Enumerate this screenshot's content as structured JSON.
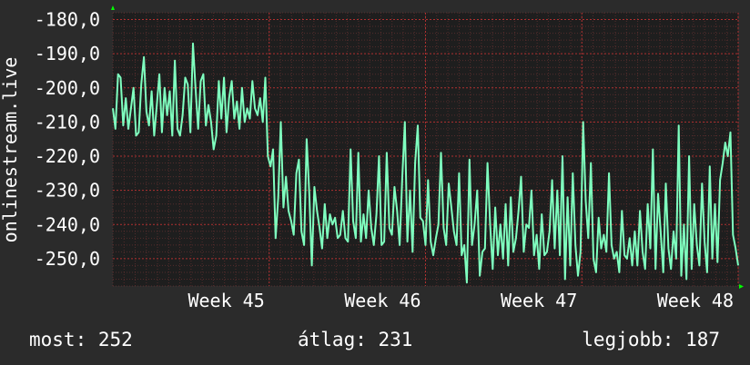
{
  "chart_data": {
    "type": "line",
    "ylabel": "onlinestream.live",
    "ylim": [
      -258,
      -178
    ],
    "yticks": [
      -180,
      -190,
      -200,
      -210,
      -220,
      -230,
      -240,
      -250
    ],
    "ytick_labels": [
      "-180,0",
      "-190,0",
      "-200,0",
      "-210,0",
      "-220,0",
      "-230,0",
      "-240,0",
      "-250,0"
    ],
    "xlim": [
      0,
      28
    ],
    "xticks": [
      7,
      14,
      21,
      28
    ],
    "xtick_labels": [
      "Week 45",
      "Week 46",
      "Week 47",
      "Week 48"
    ],
    "grid": true,
    "colors": {
      "line": "#7fffbf",
      "background": "#2b2b2b",
      "plot": "#1e1e1e",
      "grid": "#6b3333",
      "axis_arrow": "#00ff00"
    },
    "series": [
      {
        "values": [
          -206,
          -212,
          -196,
          -197,
          -211,
          -203,
          -212,
          -206,
          -200,
          -214,
          -213,
          -199,
          -191,
          -207,
          -211,
          -201,
          -214,
          -205,
          -196,
          -213,
          -200,
          -208,
          -201,
          -214,
          -192,
          -212,
          -214,
          -208,
          -197,
          -199,
          -213,
          -187,
          -200,
          -212,
          -198,
          -196,
          -211,
          -205,
          -210,
          -218,
          -214,
          -198,
          -209,
          -197,
          -213,
          -203,
          -198,
          -209,
          -204,
          -212,
          -200,
          -210,
          -206,
          -209,
          -198,
          -206,
          -208,
          -203,
          -210,
          -197,
          -220,
          -223,
          -218,
          -244,
          -232,
          -210,
          -235,
          -226,
          -236,
          -239,
          -243,
          -225,
          -221,
          -242,
          -246,
          -215,
          -231,
          -252,
          -229,
          -236,
          -241,
          -247,
          -234,
          -244,
          -237,
          -240,
          -238,
          -244,
          -243,
          -236,
          -244,
          -245,
          -218,
          -239,
          -244,
          -219,
          -245,
          -237,
          -244,
          -230,
          -241,
          -246,
          -237,
          -220,
          -246,
          -245,
          -219,
          -241,
          -243,
          -229,
          -236,
          -246,
          -226,
          -210,
          -245,
          -230,
          -248,
          -222,
          -211,
          -238,
          -239,
          -246,
          -227,
          -245,
          -249,
          -244,
          -240,
          -219,
          -241,
          -246,
          -228,
          -235,
          -242,
          -246,
          -225,
          -249,
          -246,
          -257,
          -221,
          -246,
          -240,
          -230,
          -255,
          -248,
          -247,
          -222,
          -240,
          -253,
          -235,
          -249,
          -240,
          -250,
          -234,
          -252,
          -232,
          -248,
          -244,
          -236,
          -226,
          -248,
          -240,
          -241,
          -230,
          -249,
          -243,
          -253,
          -237,
          -249,
          -248,
          -242,
          -227,
          -247,
          -230,
          -249,
          -220,
          -256,
          -232,
          -252,
          -225,
          -246,
          -255,
          -248,
          -210,
          -233,
          -244,
          -222,
          -250,
          -254,
          -238,
          -247,
          -243,
          -248,
          -225,
          -246,
          -250,
          -248,
          -254,
          -236,
          -249,
          -250,
          -244,
          -252,
          -242,
          -252,
          -236,
          -248,
          -253,
          -234,
          -247,
          -218,
          -253,
          -231,
          -242,
          -254,
          -228,
          -247,
          -253,
          -242,
          -250,
          -211,
          -255,
          -240,
          -256,
          -220,
          -253,
          -234,
          -246,
          -252,
          -228,
          -245,
          -254,
          -223,
          -250,
          -234,
          -251,
          -227,
          -222,
          -216,
          -220,
          -213,
          -243,
          -247,
          -252
        ]
      }
    ]
  },
  "footer": {
    "now_label": "most:",
    "now_value": "252",
    "avg_label": "átlag:",
    "avg_value": "231",
    "best_label": "legjobb:",
    "best_value": "187"
  }
}
